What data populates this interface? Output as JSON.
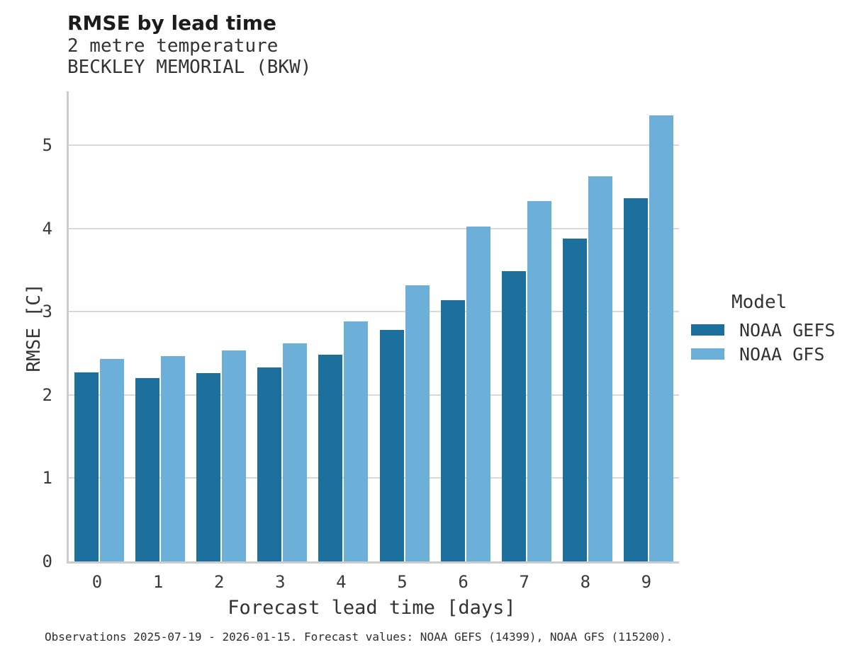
{
  "header": {
    "title": "RMSE by lead time",
    "subtitle_line1": "2 metre temperature",
    "subtitle_line2": "BECKLEY MEMORIAL (BKW)"
  },
  "chart_data": {
    "type": "bar",
    "title": "RMSE by lead time",
    "subtitle": [
      "2 metre temperature",
      "BECKLEY MEMORIAL (BKW)"
    ],
    "xlabel": "Forecast lead time [days]",
    "ylabel": "RMSE [C]",
    "categories": [
      "0",
      "1",
      "2",
      "3",
      "4",
      "5",
      "6",
      "7",
      "8",
      "9"
    ],
    "series": [
      {
        "name": "NOAA GEFS",
        "color": "#1d6f9e",
        "values": [
          2.27,
          2.2,
          2.26,
          2.33,
          2.48,
          2.78,
          3.14,
          3.49,
          3.88,
          4.36
        ]
      },
      {
        "name": "NOAA GFS",
        "color": "#6cb0d9",
        "values": [
          2.43,
          2.47,
          2.53,
          2.62,
          2.88,
          3.32,
          4.02,
          4.33,
          4.63,
          5.36
        ]
      }
    ],
    "legend_title": "Model",
    "legend_position": "right",
    "ylim": [
      0,
      5.65
    ],
    "yticks": [
      0,
      1,
      2,
      3,
      4,
      5
    ],
    "grid": "horizontal",
    "gridline_color": "#d9d9d9",
    "spine_color": "#cccccc"
  },
  "footer": {
    "caption": "Observations 2025-07-19 - 2026-01-15. Forecast values: NOAA GEFS (14399), NOAA GFS (115200)."
  }
}
